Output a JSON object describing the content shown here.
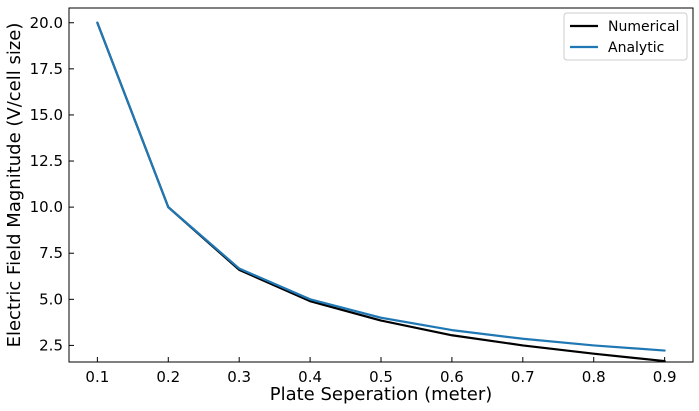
{
  "chart_data": {
    "type": "line",
    "title": "",
    "xlabel": "Plate Seperation (meter)",
    "ylabel": "Electric Field Magnitude (V/cell size)",
    "x": [
      0.1,
      0.2,
      0.3,
      0.4,
      0.5,
      0.6,
      0.7,
      0.8,
      0.9
    ],
    "xlim": [
      0.06,
      0.94
    ],
    "ylim": [
      1.6,
      20.8
    ],
    "xticks": [
      "0.1",
      "0.2",
      "0.3",
      "0.4",
      "0.5",
      "0.6",
      "0.7",
      "0.8",
      "0.9"
    ],
    "yticks": [
      "2.5",
      "5.0",
      "7.5",
      "10.0",
      "12.5",
      "15.0",
      "17.5",
      "20.0"
    ],
    "grid": false,
    "legend_position": "top-right",
    "series": [
      {
        "name": "Numerical",
        "color": "#000000",
        "values": [
          20.0,
          10.0,
          6.6,
          4.9,
          3.85,
          3.05,
          2.5,
          2.05,
          1.65
        ]
      },
      {
        "name": "Analytic",
        "color": "#1f77b4",
        "values": [
          20.0,
          10.0,
          6.67,
          5.0,
          4.0,
          3.33,
          2.86,
          2.5,
          2.22
        ]
      }
    ]
  }
}
